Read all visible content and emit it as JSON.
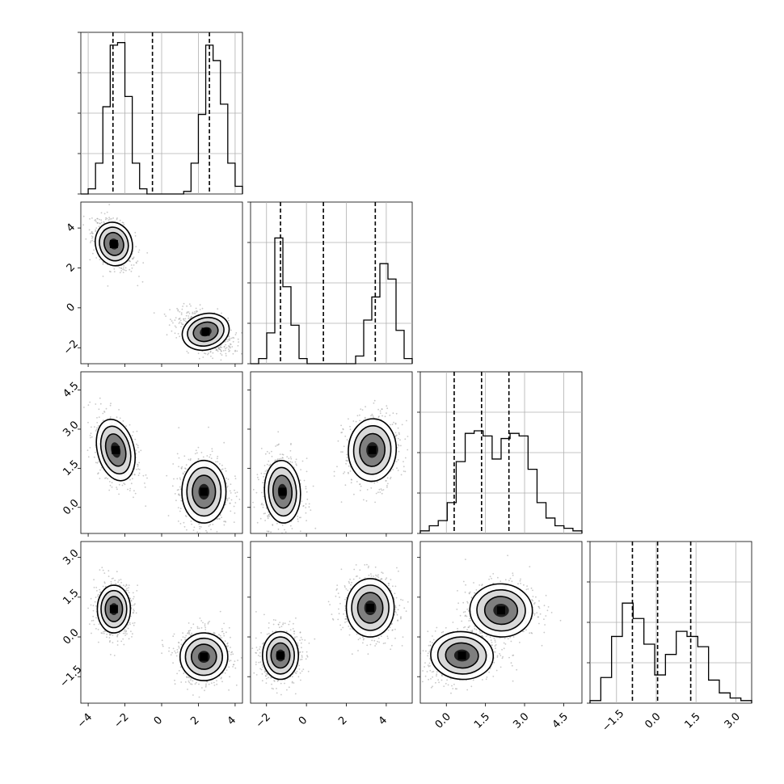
{
  "chart_data": {
    "type": "corner",
    "parameters": [
      {
        "index": 0,
        "range": [
          -4.4,
          4.4
        ],
        "ticks": [
          -4,
          -2,
          0,
          2,
          4
        ],
        "tick_labels": [
          "−4",
          "−2",
          "0",
          "2",
          "4"
        ],
        "quantiles": [
          -2.65,
          -0.5,
          2.6
        ]
      },
      {
        "index": 1,
        "range": [
          -2.8,
          5.3
        ],
        "ticks": [
          -2,
          0,
          2,
          4
        ],
        "tick_labels": [
          "−2",
          "0",
          "2",
          "4"
        ],
        "quantiles": [
          -1.3,
          0.85,
          3.45
        ]
      },
      {
        "index": 2,
        "range": [
          -1.0,
          5.2
        ],
        "ticks": [
          0.0,
          1.5,
          3.0,
          4.5
        ],
        "tick_labels": [
          "0.0",
          "1.5",
          "3.0",
          "4.5"
        ],
        "quantiles": [
          0.3,
          1.35,
          2.4
        ]
      },
      {
        "index": 3,
        "range": [
          -2.5,
          3.6
        ],
        "ticks": [
          -1.5,
          0.0,
          1.5,
          3.0
        ],
        "tick_labels": [
          "−1.5",
          "0.0",
          "1.5",
          "3.0"
        ],
        "quantiles": [
          -0.9,
          0.05,
          1.3
        ]
      }
    ],
    "histograms": [
      {
        "param": 0,
        "counts": [
          0,
          2,
          12,
          34,
          58,
          59,
          38,
          12,
          2,
          0,
          0,
          0,
          0,
          0,
          1,
          12,
          31,
          58,
          52,
          35,
          12,
          3
        ]
      },
      {
        "param": 1,
        "counts": [
          0,
          2,
          12,
          49,
          30,
          15,
          2,
          0,
          0,
          0,
          0,
          0,
          0,
          3,
          17,
          26,
          39,
          33,
          13,
          2
        ]
      },
      {
        "param": 2,
        "counts": [
          1,
          3,
          5,
          12,
          28,
          39,
          40,
          38,
          29,
          37,
          39,
          38,
          25,
          12,
          6,
          3,
          2,
          1
        ]
      },
      {
        "param": 3,
        "counts": [
          1,
          10,
          26,
          39,
          33,
          23,
          11,
          19,
          28,
          26,
          22,
          9,
          4,
          2,
          1
        ]
      }
    ],
    "histogram_max": 63,
    "joint_blobs": [
      {
        "x": 0,
        "y": 1,
        "blobs": [
          {
            "mx": -2.6,
            "my": 3.2,
            "sx": 0.5,
            "sy": 0.55,
            "rho": -0.45
          },
          {
            "mx": 2.4,
            "my": -1.2,
            "sx": 0.65,
            "sy": 0.45,
            "rho": -0.45
          }
        ]
      },
      {
        "x": 0,
        "y": 2,
        "blobs": [
          {
            "mx": -2.5,
            "my": 2.2,
            "sx": 0.5,
            "sy": 0.6,
            "rho": -0.4
          },
          {
            "mx": 2.3,
            "my": 0.6,
            "sx": 0.6,
            "sy": 0.6,
            "rho": 0.0
          }
        ]
      },
      {
        "x": 1,
        "y": 2,
        "blobs": [
          {
            "mx": -1.2,
            "my": 0.6,
            "sx": 0.45,
            "sy": 0.6,
            "rho": -0.1
          },
          {
            "mx": 3.3,
            "my": 2.2,
            "sx": 0.6,
            "sy": 0.6,
            "rho": 0.1
          }
        ]
      },
      {
        "x": 0,
        "y": 3,
        "blobs": [
          {
            "mx": -2.6,
            "my": 1.05,
            "sx": 0.45,
            "sy": 0.45,
            "rho": 0.0
          },
          {
            "mx": 2.3,
            "my": -0.75,
            "sx": 0.65,
            "sy": 0.45,
            "rho": 0.0
          }
        ]
      },
      {
        "x": 1,
        "y": 3,
        "blobs": [
          {
            "mx": -1.3,
            "my": -0.7,
            "sx": 0.45,
            "sy": 0.45,
            "rho": 0.0
          },
          {
            "mx": 3.2,
            "my": 1.1,
            "sx": 0.6,
            "sy": 0.55,
            "rho": 0.0
          }
        ]
      },
      {
        "x": 2,
        "y": 3,
        "blobs": [
          {
            "mx": 0.6,
            "my": -0.7,
            "sx": 0.6,
            "sy": 0.45,
            "rho": 0.1
          },
          {
            "mx": 2.1,
            "my": 1.0,
            "sx": 0.6,
            "sy": 0.5,
            "rho": 0.1
          }
        ]
      }
    ],
    "grid": true,
    "colors": {
      "line": "#000000",
      "grid": "#b0b0b0",
      "points": "#9a9a9a",
      "fill_dark": "#1a1a1a",
      "fill_mid": "#7a7a7a",
      "fill_light": "#d6d6d6"
    }
  }
}
